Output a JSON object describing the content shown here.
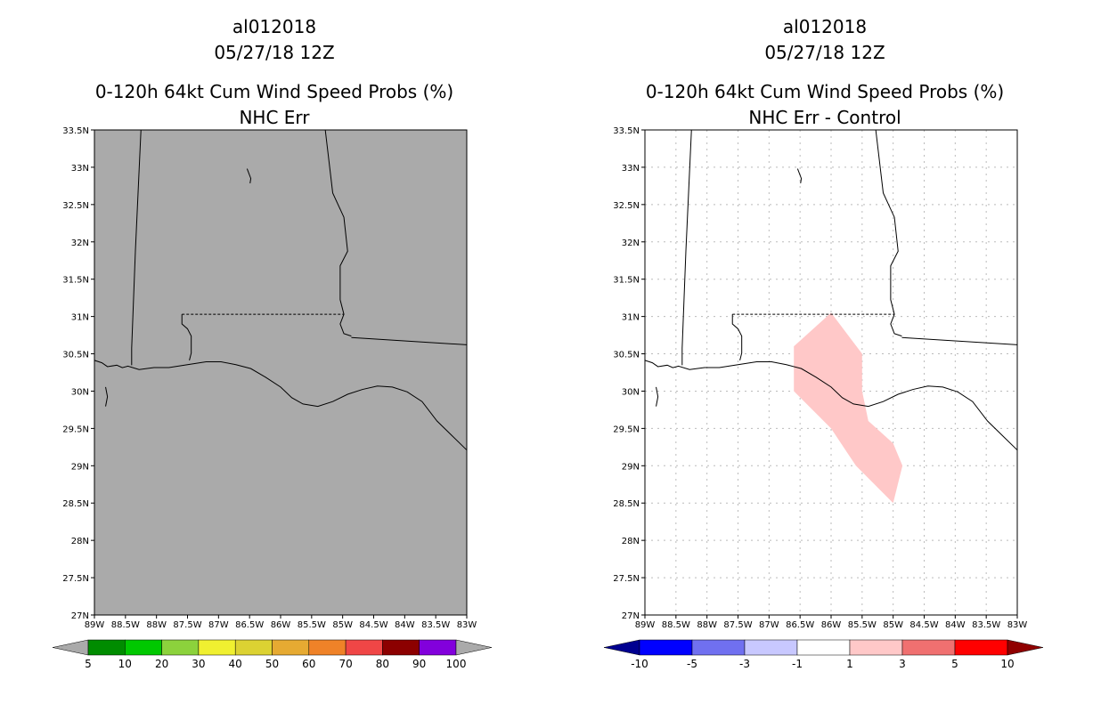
{
  "left": {
    "title_line1": "al012018",
    "title_line2": "05/27/18 12Z",
    "title_line3": "0-120h 64kt Cum Wind Speed Probs (%)",
    "title_line4": "NHC Err",
    "colorbar": {
      "colors": [
        "#008c00",
        "#00c800",
        "#8cd23c",
        "#f0f030",
        "#dcd232",
        "#e6aa32",
        "#ef8228",
        "#f04646",
        "#8c0000",
        "#8200dc"
      ],
      "end_color": "#aaaaaa",
      "labels": [
        "5",
        "10",
        "20",
        "30",
        "40",
        "50",
        "60",
        "70",
        "80",
        "90",
        "100"
      ]
    }
  },
  "right": {
    "title_line1": "al012018",
    "title_line2": "05/27/18 12Z",
    "title_line3": "0-120h 64kt Cum Wind Speed Probs (%)",
    "title_line4": "NHC Err - Control",
    "colorbar": {
      "colors": [
        "#0000ff",
        "#7070f0",
        "#c8c8ff",
        "#ffffff",
        "#ffc8c8",
        "#f07070",
        "#ff0000"
      ],
      "start_color": "#000090",
      "end_color": "#900000",
      "labels": [
        "-10",
        "-5",
        "-3",
        "-1",
        "1",
        "3",
        "5",
        "10"
      ]
    }
  },
  "axes": {
    "lat_labels": [
      "33.5N",
      "33N",
      "32.5N",
      "32N",
      "31.5N",
      "31N",
      "30.5N",
      "30N",
      "29.5N",
      "29N",
      "28.5N",
      "28N",
      "27.5N",
      "27N"
    ],
    "lon_labels": [
      "89W",
      "88.5W",
      "88W",
      "87.5W",
      "87W",
      "86.5W",
      "86W",
      "85.5W",
      "85W",
      "84.5W",
      "84W",
      "83.5W",
      "83W"
    ],
    "lat_range": [
      27,
      33.5
    ],
    "lon_range": [
      -89,
      -83
    ]
  },
  "left_map_fill": "#aaaaaa",
  "right_map_fill": "#ffffff",
  "diff_shading_color": "#ffc8c8",
  "diff_region": {
    "vertices_lon_lat": [
      [
        -86.6,
        30.0
      ],
      [
        -86.6,
        30.6
      ],
      [
        -86.0,
        31.05
      ],
      [
        -85.5,
        30.5
      ],
      [
        -85.5,
        30.0
      ],
      [
        -85.4,
        29.6
      ],
      [
        -85.0,
        29.3
      ],
      [
        -84.85,
        29.0
      ],
      [
        -85.0,
        28.5
      ],
      [
        -85.6,
        29.0
      ],
      [
        -86.0,
        29.5
      ],
      [
        -86.6,
        30.0
      ]
    ]
  }
}
